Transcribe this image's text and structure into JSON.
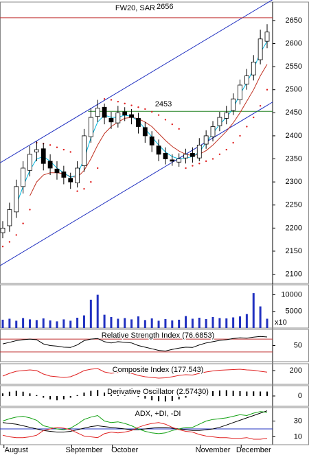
{
  "chart_data": {
    "type": "candlestick",
    "title": "FW20, SAR",
    "categories": [
      null,
      null,
      "August",
      null,
      null,
      null,
      null,
      null,
      null,
      null,
      null,
      null,
      "September",
      null,
      null,
      null,
      null,
      null,
      "October",
      null,
      null,
      null,
      null,
      null,
      null,
      null,
      null,
      null,
      null,
      null,
      null,
      "November",
      null,
      null,
      null,
      null,
      null,
      "December",
      null,
      null
    ],
    "open": [
      2190,
      2205,
      2235,
      2290,
      2325,
      2365,
      2372,
      2345,
      2328,
      2322,
      2308,
      2298,
      2335,
      2398,
      2442,
      2462,
      2438,
      2428,
      2452,
      2446,
      2438,
      2418,
      2398,
      2378,
      2362,
      2348,
      2343,
      2352,
      2362,
      2352,
      2382,
      2398,
      2422,
      2438,
      2455,
      2478,
      2512,
      2532,
      2565,
      2605
    ],
    "high": [
      2215,
      2255,
      2305,
      2345,
      2378,
      2388,
      2385,
      2360,
      2345,
      2335,
      2320,
      2345,
      2415,
      2460,
      2478,
      2470,
      2452,
      2465,
      2462,
      2458,
      2450,
      2430,
      2410,
      2392,
      2375,
      2360,
      2362,
      2372,
      2375,
      2395,
      2412,
      2432,
      2452,
      2465,
      2492,
      2522,
      2545,
      2575,
      2630,
      2642
    ],
    "low": [
      2178,
      2192,
      2222,
      2275,
      2312,
      2345,
      2325,
      2315,
      2305,
      2295,
      2285,
      2288,
      2322,
      2385,
      2430,
      2425,
      2415,
      2418,
      2432,
      2425,
      2405,
      2385,
      2365,
      2345,
      2338,
      2335,
      2333,
      2340,
      2342,
      2345,
      2372,
      2388,
      2410,
      2425,
      2445,
      2468,
      2500,
      2520,
      2555,
      2590
    ],
    "close": [
      2200,
      2240,
      2290,
      2330,
      2360,
      2370,
      2340,
      2330,
      2320,
      2310,
      2300,
      2330,
      2400,
      2440,
      2460,
      2440,
      2430,
      2450,
      2445,
      2440,
      2420,
      2400,
      2380,
      2360,
      2350,
      2345,
      2350,
      2360,
      2355,
      2380,
      2400,
      2420,
      2440,
      2450,
      2480,
      2510,
      2530,
      2560,
      2610,
      2625
    ],
    "ylim": [
      2080,
      2690
    ],
    "yticks": [
      2100,
      2150,
      2200,
      2250,
      2300,
      2350,
      2400,
      2450,
      2500,
      2550,
      2600,
      2650
    ],
    "ma_fast": {
      "color": "#00b8e0",
      "values": [
        null,
        null,
        2250,
        2290,
        2325,
        2350,
        2355,
        2345,
        2330,
        2320,
        2310,
        2315,
        2350,
        2395,
        2430,
        2445,
        2440,
        2440,
        2445,
        2442,
        2432,
        2415,
        2398,
        2380,
        2365,
        2355,
        2350,
        2352,
        2355,
        2365,
        2385,
        2405,
        2425,
        2440,
        2460,
        2490,
        2515,
        2545,
        2580,
        2605
      ]
    },
    "ma_slow": {
      "color": "#c03020",
      "values": [
        null,
        null,
        null,
        null,
        2270,
        2300,
        2315,
        2320,
        2320,
        2318,
        2312,
        2310,
        2325,
        2350,
        2380,
        2405,
        2420,
        2430,
        2438,
        2440,
        2437,
        2430,
        2420,
        2405,
        2390,
        2377,
        2367,
        2360,
        2357,
        2360,
        2368,
        2380,
        2395,
        2410,
        2428,
        2450,
        2475,
        2500,
        2530,
        2555
      ]
    },
    "sar": {
      "color": "#e02020",
      "values": [
        2160,
        2170,
        2185,
        2210,
        2240,
        2385,
        2383,
        2380,
        2375,
        2370,
        2365,
        2280,
        2285,
        2300,
        2330,
        2480,
        2478,
        2474,
        2470,
        2466,
        2462,
        2458,
        2452,
        2445,
        2435,
        2425,
        2415,
        2330,
        2335,
        2340,
        2345,
        2350,
        2360,
        2370,
        2385,
        2400,
        2420,
        2440,
        2465,
        2500
      ]
    },
    "channels": [
      {
        "color": "#2030c0",
        "values": [
          2345,
          2688
        ]
      },
      {
        "color": "#2030c0",
        "values": [
          2122,
          2466
        ]
      }
    ],
    "lines": [
      {
        "label": "2656",
        "value": 2656,
        "color": "#c03030",
        "x_start": 0
      },
      {
        "label": "2453",
        "value": 2453,
        "color": "#208020",
        "x_start": 13
      }
    ],
    "volume": {
      "color": "#2030c0",
      "unit_label": "x10",
      "ylim": [
        0,
        13000
      ],
      "yticks": [
        5000,
        10000
      ],
      "values": [
        2500,
        2800,
        2200,
        3000,
        2600,
        2400,
        2900,
        2300,
        2000,
        2600,
        2200,
        3100,
        3800,
        8500,
        10000,
        4000,
        3300,
        2800,
        3000,
        2600,
        3500,
        2400,
        2900,
        2200,
        2700,
        2300,
        2500,
        3600,
        2800,
        3100,
        2700,
        3300,
        3000,
        2900,
        3200,
        3500,
        4200,
        10500,
        6500,
        2800
      ]
    },
    "rsi": {
      "title": "Relative Strength Index (76.6853)",
      "color": "#000000",
      "ylim": [
        0,
        100
      ],
      "yticks": [
        50
      ],
      "levels": [
        70,
        30
      ],
      "level_color": "#c03030",
      "values": [
        55,
        60,
        65,
        68,
        70,
        68,
        55,
        50,
        48,
        45,
        44,
        52,
        65,
        70,
        72,
        62,
        58,
        62,
        60,
        58,
        50,
        45,
        40,
        35,
        33,
        38,
        42,
        45,
        44,
        52,
        58,
        62,
        66,
        68,
        72,
        74,
        73,
        76,
        78,
        76.6853
      ]
    },
    "composite": {
      "title": "Composite Index (177.543)",
      "color": "#e02020",
      "ylim": [
        0,
        300
      ],
      "yticks": [
        200
      ],
      "values": [
        120,
        160,
        190,
        200,
        210,
        200,
        150,
        120,
        110,
        100,
        110,
        150,
        200,
        220,
        230,
        180,
        160,
        175,
        170,
        160,
        130,
        110,
        100,
        90,
        95,
        110,
        130,
        140,
        135,
        160,
        180,
        195,
        205,
        210,
        215,
        220,
        210,
        205,
        190,
        177.543
      ]
    },
    "oscillator": {
      "title": "Derivative Oscillator (2.57430)",
      "color": "#000000",
      "ylim": [
        -6,
        6
      ],
      "yticks": [
        0
      ],
      "values": [
        1.5,
        2.5,
        3,
        2.5,
        1.5,
        0.5,
        -1,
        -2,
        -2.5,
        -2,
        -1,
        0.5,
        2,
        3,
        3.5,
        2,
        1,
        0.5,
        0.3,
        0,
        -0.5,
        -1.5,
        -2.5,
        -3,
        -3.2,
        -2.8,
        -2,
        -1,
        0,
        1,
        2,
        2.8,
        3.2,
        3.4,
        3,
        2.8,
        2.6,
        2.7,
        2.6,
        2.5743
      ]
    },
    "adx": {
      "title": "ADX, +DI, -DI",
      "ylim": [
        0,
        47
      ],
      "yticks": [
        10,
        30
      ],
      "levels": [
        20
      ],
      "level_color": "#2030c0",
      "series": [
        {
          "color": "#000000",
          "values": [
            28,
            27,
            26,
            24,
            22,
            20,
            18,
            17,
            16,
            16,
            17,
            19,
            21,
            23,
            24,
            23,
            22,
            21,
            20,
            19,
            19,
            20,
            21,
            22,
            22,
            21,
            20,
            19,
            18,
            18,
            19,
            20,
            22,
            25,
            28,
            31,
            34,
            37,
            40,
            43
          ]
        },
        {
          "color": "#10a010",
          "values": [
            30,
            33,
            35,
            36,
            34,
            31,
            24,
            22,
            20,
            19,
            21,
            26,
            32,
            35,
            37,
            30,
            28,
            29,
            27,
            24,
            20,
            17,
            15,
            14,
            15,
            18,
            20,
            22,
            22,
            26,
            30,
            32,
            33,
            34,
            36,
            38,
            37,
            40,
            42,
            41
          ]
        },
        {
          "color": "#e02020",
          "values": [
            12,
            10,
            9,
            9,
            10,
            12,
            18,
            20,
            22,
            21,
            19,
            15,
            11,
            10,
            9,
            14,
            16,
            15,
            16,
            18,
            22,
            25,
            27,
            28,
            26,
            22,
            19,
            17,
            16,
            13,
            11,
            10,
            9,
            9,
            8,
            8,
            9,
            7,
            7,
            8
          ]
        }
      ]
    }
  }
}
